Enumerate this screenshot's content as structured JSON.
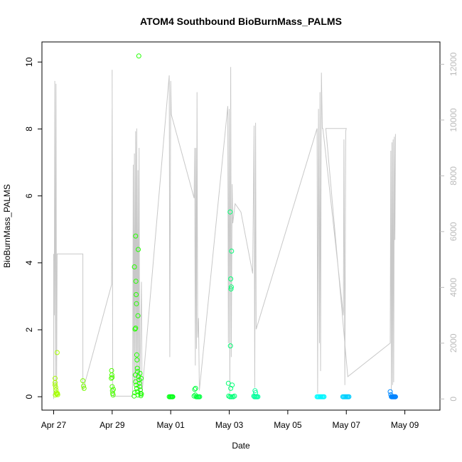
{
  "chart_data": {
    "type": "scatter",
    "title": "ATOM4 Southbound BioBurnMass_PALMS",
    "xlabel": "Date",
    "ylabel": "BioBurnMass_PALMS",
    "x_ticks": [
      "Apr 27",
      "Apr 29",
      "May 01",
      "May 03",
      "May 05",
      "May 07",
      "May 09"
    ],
    "xlim": [
      "Apr 26.6",
      "May 10.2"
    ],
    "ylim": [
      -0.4,
      10.6
    ],
    "y_ticks": [
      0,
      2,
      4,
      6,
      8,
      10
    ],
    "y2lim": [
      -400,
      12800
    ],
    "y2_ticks": [
      0,
      2000,
      4000,
      6000,
      8000,
      10000,
      12000
    ],
    "y2_color": "#bbbbbb",
    "grid": false,
    "point_color_scale": "rainbow (yellow-green to blue by date)",
    "series": [
      {
        "type": "scatter",
        "points": [
          {
            "x": 27.05,
            "y": 0.55
          },
          {
            "x": 27.05,
            "y": 0.42
          },
          {
            "x": 27.05,
            "y": 0.35
          },
          {
            "x": 27.07,
            "y": 0.28
          },
          {
            "x": 27.08,
            "y": 0.2
          },
          {
            "x": 27.09,
            "y": 0.12
          },
          {
            "x": 27.1,
            "y": 0.08
          },
          {
            "x": 27.06,
            "y": 0.05
          },
          {
            "x": 27.12,
            "y": 1.32
          },
          {
            "x": 27.13,
            "y": 0.1
          },
          {
            "x": 27.14,
            "y": 0.06
          },
          {
            "x": 28.0,
            "y": 0.48
          },
          {
            "x": 28.02,
            "y": 0.32
          },
          {
            "x": 28.04,
            "y": 0.25
          },
          {
            "x": 28.98,
            "y": 0.78
          },
          {
            "x": 28.99,
            "y": 0.65
          },
          {
            "x": 29.0,
            "y": 0.58
          },
          {
            "x": 29.0,
            "y": 0.3
          },
          {
            "x": 29.01,
            "y": 0.18
          },
          {
            "x": 29.02,
            "y": 0.1
          },
          {
            "x": 29.03,
            "y": 0.05
          },
          {
            "x": 28.97,
            "y": 0.55
          },
          {
            "x": 29.04,
            "y": 0.22
          },
          {
            "x": 29.76,
            "y": 3.88
          },
          {
            "x": 29.78,
            "y": 2.02
          },
          {
            "x": 29.8,
            "y": 2.05
          },
          {
            "x": 29.8,
            "y": 4.8
          },
          {
            "x": 29.81,
            "y": 3.45
          },
          {
            "x": 29.82,
            "y": 3.05
          },
          {
            "x": 29.83,
            "y": 2.78
          },
          {
            "x": 29.84,
            "y": 1.25
          },
          {
            "x": 29.85,
            "y": 1.1
          },
          {
            "x": 29.86,
            "y": 0.85
          },
          {
            "x": 29.87,
            "y": 0.75
          },
          {
            "x": 29.88,
            "y": 2.42
          },
          {
            "x": 29.89,
            "y": 4.4
          },
          {
            "x": 29.9,
            "y": 0.6
          },
          {
            "x": 29.91,
            "y": 10.18
          },
          {
            "x": 29.92,
            "y": 0.5
          },
          {
            "x": 29.93,
            "y": 0.4
          },
          {
            "x": 29.94,
            "y": 0.3
          },
          {
            "x": 29.95,
            "y": 0.7
          },
          {
            "x": 29.96,
            "y": 0.2
          },
          {
            "x": 29.97,
            "y": 0.1
          },
          {
            "x": 29.79,
            "y": 0.65
          },
          {
            "x": 29.8,
            "y": 0.45
          },
          {
            "x": 29.82,
            "y": 0.35
          },
          {
            "x": 29.84,
            "y": 0.25
          },
          {
            "x": 29.86,
            "y": 0.15
          },
          {
            "x": 29.88,
            "y": 0.05
          },
          {
            "x": 29.77,
            "y": 0.12
          },
          {
            "x": 29.99,
            "y": 0.55
          },
          {
            "x": 30.0,
            "y": 0.08
          },
          {
            "x": 29.75,
            "y": 0.02
          },
          {
            "x": 29.98,
            "y": 0.03
          },
          {
            "x": 30.95,
            "y": 0.0
          },
          {
            "x": 30.98,
            "y": 0.0
          },
          {
            "x": 31.0,
            "y": 0.0
          },
          {
            "x": 31.03,
            "y": 0.0
          },
          {
            "x": 31.05,
            "y": 0.0
          },
          {
            "x": 31.07,
            "y": 0.0
          },
          {
            "x": 31.82,
            "y": 0.22
          },
          {
            "x": 31.85,
            "y": 0.25
          },
          {
            "x": 31.84,
            "y": 0.05
          },
          {
            "x": 31.87,
            "y": 0.0
          },
          {
            "x": 31.9,
            "y": 0.0
          },
          {
            "x": 31.93,
            "y": 0.0
          },
          {
            "x": 31.96,
            "y": 0.0
          },
          {
            "x": 31.99,
            "y": 0.0
          },
          {
            "x": 31.8,
            "y": 0.02
          },
          {
            "x": 32.97,
            "y": 0.4
          },
          {
            "x": 33.03,
            "y": 5.52
          },
          {
            "x": 33.05,
            "y": 3.52
          },
          {
            "x": 33.06,
            "y": 3.22
          },
          {
            "x": 33.07,
            "y": 3.28
          },
          {
            "x": 33.08,
            "y": 4.35
          },
          {
            "x": 33.04,
            "y": 1.52
          },
          {
            "x": 33.05,
            "y": 0.25
          },
          {
            "x": 33.1,
            "y": 0.35
          },
          {
            "x": 32.98,
            "y": 0.02
          },
          {
            "x": 33.02,
            "y": 0.0
          },
          {
            "x": 33.06,
            "y": 0.0
          },
          {
            "x": 33.1,
            "y": 0.0
          },
          {
            "x": 33.14,
            "y": 0.0
          },
          {
            "x": 33.18,
            "y": 0.02
          },
          {
            "x": 33.88,
            "y": 0.18
          },
          {
            "x": 33.9,
            "y": 0.12
          },
          {
            "x": 33.86,
            "y": 0.0
          },
          {
            "x": 33.89,
            "y": 0.0
          },
          {
            "x": 33.92,
            "y": 0.0
          },
          {
            "x": 33.95,
            "y": 0.0
          },
          {
            "x": 33.98,
            "y": 0.0
          },
          {
            "x": 33.84,
            "y": 0.02
          },
          {
            "x": 36.0,
            "y": 0.0
          },
          {
            "x": 36.03,
            "y": 0.0
          },
          {
            "x": 36.06,
            "y": 0.0
          },
          {
            "x": 36.09,
            "y": 0.0
          },
          {
            "x": 36.12,
            "y": 0.0
          },
          {
            "x": 36.15,
            "y": 0.0
          },
          {
            "x": 36.18,
            "y": 0.0
          },
          {
            "x": 36.21,
            "y": 0.0
          },
          {
            "x": 36.24,
            "y": 0.0
          },
          {
            "x": 36.88,
            "y": 0.0
          },
          {
            "x": 36.91,
            "y": 0.0
          },
          {
            "x": 36.94,
            "y": 0.0
          },
          {
            "x": 36.97,
            "y": 0.0
          },
          {
            "x": 37.0,
            "y": 0.0
          },
          {
            "x": 37.03,
            "y": 0.0
          },
          {
            "x": 37.06,
            "y": 0.0
          },
          {
            "x": 37.09,
            "y": 0.0
          },
          {
            "x": 38.5,
            "y": 0.15
          },
          {
            "x": 38.52,
            "y": 0.06
          },
          {
            "x": 38.54,
            "y": 0.0
          },
          {
            "x": 38.56,
            "y": 0.0
          },
          {
            "x": 38.58,
            "y": 0.0
          },
          {
            "x": 38.6,
            "y": 0.0
          },
          {
            "x": 38.62,
            "y": 0.0
          },
          {
            "x": 38.64,
            "y": 0.0
          },
          {
            "x": 38.66,
            "y": 0.0
          },
          {
            "x": 38.68,
            "y": 0.0
          }
        ]
      },
      {
        "type": "line",
        "axis": "right",
        "color": "#c8c8c8",
        "points": [
          [
            27.0,
            0
          ],
          [
            27.0,
            5200
          ],
          [
            27.02,
            3000
          ],
          [
            27.04,
            11400
          ],
          [
            27.06,
            400
          ],
          [
            27.08,
            11300
          ],
          [
            27.1,
            200
          ],
          [
            27.12,
            5200
          ],
          [
            28.0,
            5200
          ],
          [
            28.0,
            300
          ],
          [
            28.98,
            4100
          ],
          [
            29.0,
            10400
          ],
          [
            29.02,
            300
          ],
          [
            29.0,
            11800
          ],
          [
            29.02,
            400
          ],
          [
            29.04,
            100
          ],
          [
            29.7,
            100
          ],
          [
            29.72,
            8400
          ],
          [
            29.74,
            500
          ],
          [
            29.76,
            8800
          ],
          [
            29.78,
            600
          ],
          [
            29.8,
            9600
          ],
          [
            29.82,
            400
          ],
          [
            29.84,
            9700
          ],
          [
            29.86,
            700
          ],
          [
            29.88,
            8200
          ],
          [
            29.9,
            300
          ],
          [
            29.92,
            9000
          ],
          [
            29.94,
            100
          ],
          [
            30.0,
            4200
          ],
          [
            30.02,
            200
          ],
          [
            30.95,
            11600
          ],
          [
            30.97,
            1500
          ],
          [
            31.0,
            11400
          ],
          [
            31.02,
            10200
          ],
          [
            31.8,
            7200
          ],
          [
            31.82,
            9000
          ],
          [
            31.84,
            1200
          ],
          [
            31.86,
            9000
          ],
          [
            31.88,
            1800
          ],
          [
            31.9,
            11000
          ],
          [
            31.92,
            2200
          ],
          [
            31.95,
            2900
          ],
          [
            31.98,
            300
          ],
          [
            32.95,
            10500
          ],
          [
            32.97,
            2000
          ],
          [
            33.0,
            10400
          ],
          [
            33.02,
            200
          ],
          [
            33.05,
            11900
          ],
          [
            33.07,
            1500
          ],
          [
            33.1,
            7700
          ],
          [
            33.12,
            6300
          ],
          [
            33.2,
            7000
          ],
          [
            33.4,
            6700
          ],
          [
            33.8,
            4500
          ],
          [
            33.85,
            9800
          ],
          [
            33.87,
            400
          ],
          [
            33.9,
            9900
          ],
          [
            33.92,
            2500
          ],
          [
            36.0,
            9700
          ],
          [
            36.02,
            200
          ],
          [
            36.05,
            10400
          ],
          [
            36.08,
            2000
          ],
          [
            36.1,
            11000
          ],
          [
            36.12,
            1000
          ],
          [
            36.15,
            11700
          ],
          [
            36.18,
            9700
          ],
          [
            36.2,
            9700
          ],
          [
            36.9,
            3000
          ],
          [
            36.92,
            9300
          ],
          [
            36.95,
            500
          ],
          [
            36.98,
            9600
          ],
          [
            37.0,
            9700
          ],
          [
            36.3,
            9700
          ],
          [
            37.05,
            800
          ],
          [
            38.5,
            2000
          ],
          [
            38.52,
            8900
          ],
          [
            38.54,
            300
          ],
          [
            38.56,
            9200
          ],
          [
            38.58,
            500
          ],
          [
            38.6,
            9300
          ],
          [
            38.62,
            600
          ],
          [
            38.64,
            9400
          ],
          [
            38.66,
            5700
          ],
          [
            38.68,
            9500
          ]
        ]
      }
    ]
  }
}
